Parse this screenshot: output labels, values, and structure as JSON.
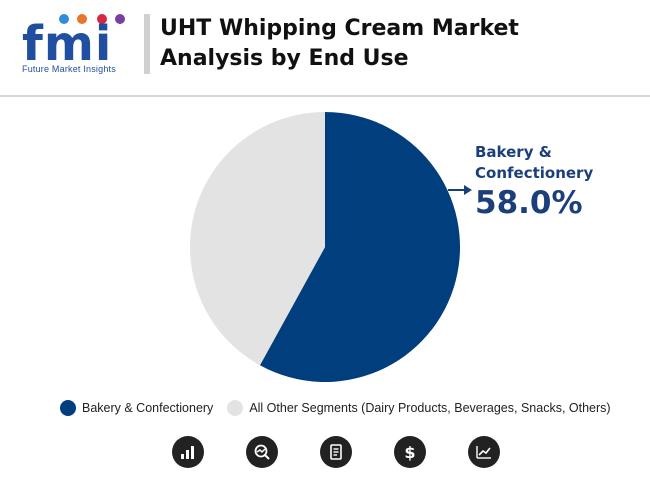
{
  "brand": {
    "logo_text": "fmi",
    "tagline": "Future Market Insights"
  },
  "header": {
    "title_line1": "UHT Whipping Cream Market",
    "title_line2": "Analysis by End Use"
  },
  "colors": {
    "primary": "#003e7e",
    "secondary": "#e3e3e3",
    "callout_text": "#1b3f7a"
  },
  "callout": {
    "label_line1": "Bakery &",
    "label_line2": "Confectionery",
    "value": "58.0%"
  },
  "legend": [
    {
      "label": "Bakery & Confectionery",
      "color": "#003e7e"
    },
    {
      "label": "All Other Segments (Dairy Products, Beverages, Snacks, Others)",
      "color": "#e3e3e3"
    }
  ],
  "footer_icons": [
    "bar-chart-icon",
    "magnifier-chart-icon",
    "document-icon",
    "dollar-icon",
    "line-chart-icon"
  ],
  "chart_data": {
    "type": "pie",
    "title": "UHT Whipping Cream Market Analysis by End Use",
    "slices": [
      {
        "label": "Bakery & Confectionery",
        "value": 58.0,
        "color": "#003e7e"
      },
      {
        "label": "All Other Segments (Dairy Products, Beverages, Snacks, Others)",
        "value": 42.0,
        "color": "#e3e3e3"
      }
    ],
    "legend_position": "bottom",
    "annotations": [
      {
        "text": "58.0%",
        "target": "Bakery & Confectionery"
      }
    ]
  }
}
